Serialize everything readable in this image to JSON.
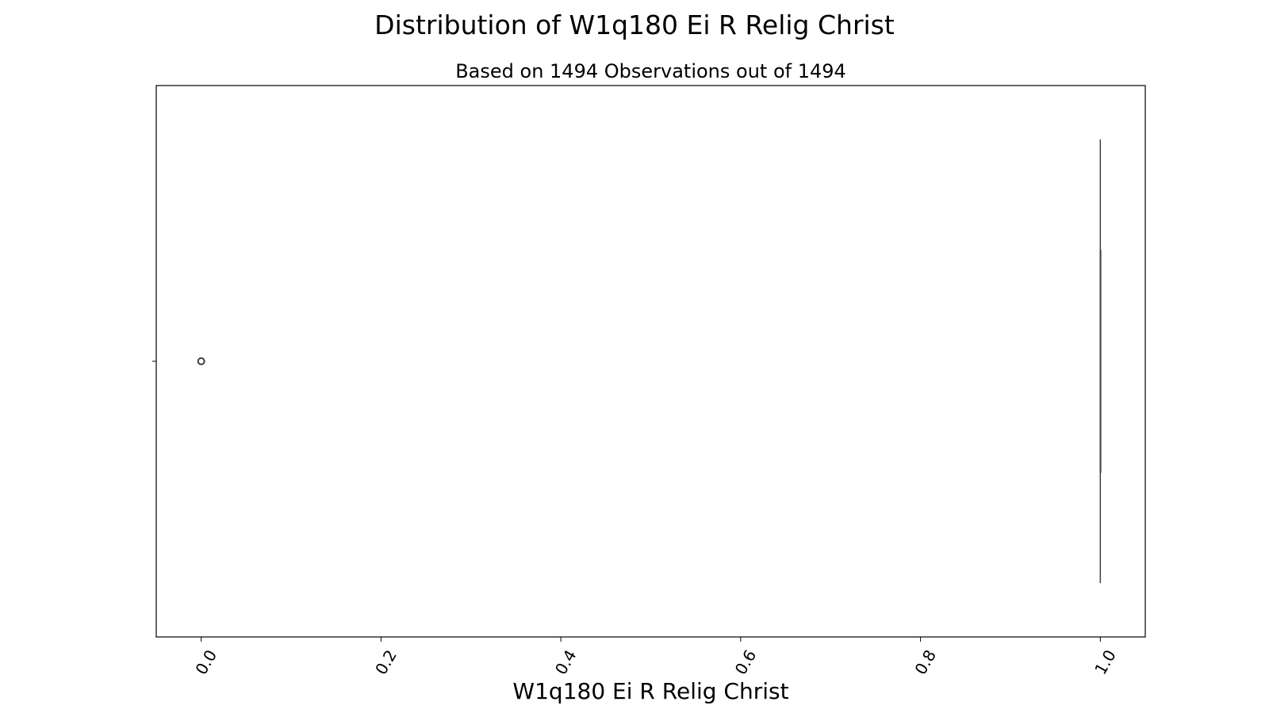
{
  "chart_data": {
    "type": "box",
    "title": "Distribution of W1q180 Ei R Relig Christ",
    "subtitle": "Based on 1494 Observations out of 1494",
    "xlabel": "W1q180 Ei R Relig Christ",
    "ylabel": "",
    "xlim": [
      -0.05,
      1.05
    ],
    "xticks": [
      0.0,
      0.2,
      0.4,
      0.6,
      0.8,
      1.0
    ],
    "xtick_labels": [
      "0.0",
      "0.2",
      "0.4",
      "0.6",
      "0.8",
      "1.0"
    ],
    "xtick_rotation": 60,
    "orientation": "horizontal",
    "box": {
      "whislo": 1.0,
      "q1": 1.0,
      "median": 1.0,
      "q3": 1.0,
      "whishi": 1.0,
      "fliers": [
        0.0
      ]
    },
    "grid": false,
    "colors": {
      "box_line": "#3f3f3f",
      "flier": "#3f3f3f",
      "axes": "#000000"
    }
  }
}
